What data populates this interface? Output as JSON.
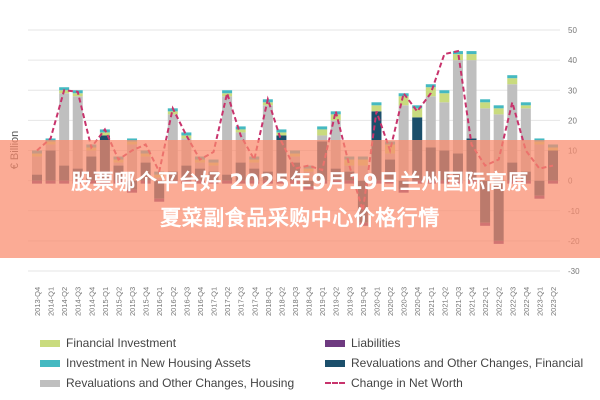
{
  "chart_data": {
    "type": "bar",
    "stacked": true,
    "ylabel": "€ Billion",
    "ylim": [
      -30,
      50
    ],
    "yticks": [
      50,
      40,
      30,
      20,
      10,
      0,
      -10,
      -20,
      -30
    ],
    "grid": true,
    "y_axis_side": "right",
    "legend_position": "bottom",
    "categories": [
      "2013-Q4",
      "2014-Q1",
      "2014-Q2",
      "2014-Q3",
      "2014-Q4",
      "2015-Q1",
      "2015-Q2",
      "2015-Q3",
      "2015-Q4",
      "2016-Q1",
      "2016-Q2",
      "2016-Q3",
      "2016-Q4",
      "2017-Q1",
      "2017-Q2",
      "2017-Q3",
      "2017-Q4",
      "2018-Q1",
      "2018-Q2",
      "2018-Q3",
      "2018-Q4",
      "2019-Q1",
      "2019-Q2",
      "2019-Q3",
      "2019-Q4",
      "2020-Q1",
      "2020-Q2",
      "2020-Q3",
      "2020-Q4",
      "2021-Q1",
      "2021-Q2",
      "2021-Q3",
      "2021-Q4",
      "2022-Q1",
      "2022-Q2",
      "2022-Q3",
      "2022-Q4",
      "2023-Q1",
      "2023-Q2"
    ],
    "series": [
      {
        "name": "Financial Investment",
        "kind": "bar",
        "color": "#c9db7e",
        "values": [
          1,
          1,
          1,
          1,
          1,
          1,
          1,
          1,
          1,
          1,
          1,
          1,
          1,
          1,
          1,
          1,
          1,
          1,
          1,
          1,
          1,
          2,
          2,
          2,
          2,
          2,
          3,
          3,
          3,
          3,
          3,
          2,
          2,
          2,
          2,
          2,
          1,
          1,
          1
        ]
      },
      {
        "name": "Liabilities",
        "kind": "bar",
        "color": "#6e3a80",
        "values": [
          -1,
          -1,
          -1,
          -1,
          -1,
          -1,
          -1,
          -1,
          -1,
          -1,
          -1,
          -1,
          -1,
          -1,
          -1,
          -1,
          -1,
          -1,
          -1,
          -1,
          -1,
          -1,
          -1,
          -1,
          -1,
          -1,
          -1,
          -1,
          -1,
          -1,
          -1,
          -1,
          -1,
          -1,
          -1,
          -1,
          -1,
          -1,
          -1
        ]
      },
      {
        "name": "Investment in New Housing Assets",
        "kind": "bar",
        "color": "#45b9c1",
        "values": [
          1,
          1,
          1,
          1,
          1,
          1,
          1,
          1,
          1,
          1,
          1,
          1,
          1,
          1,
          1,
          1,
          1,
          1,
          1,
          1,
          1,
          1,
          1,
          1,
          1,
          1,
          1,
          1,
          1,
          1,
          1,
          1,
          1,
          1,
          1,
          1,
          1,
          1,
          1
        ]
      },
      {
        "name": "Revaluations and Other Changes, Financial",
        "kind": "bar",
        "color": "#1b4f6b",
        "values": [
          2,
          10,
          5,
          4,
          8,
          15,
          5,
          -3,
          6,
          -6,
          3,
          5,
          4,
          3,
          2,
          6,
          4,
          3,
          15,
          6,
          -2,
          13,
          4,
          3,
          -14,
          23,
          7,
          -3,
          21,
          11,
          10,
          9,
          14,
          -14,
          -20,
          6,
          3,
          -5,
          10
        ]
      },
      {
        "name": "Revaluations and Other Changes, Housing",
        "kind": "bar",
        "color": "#bfbfbf",
        "values": [
          6,
          2,
          24,
          24,
          2,
          0,
          1,
          12,
          2,
          1,
          19,
          9,
          2,
          2,
          26,
          10,
          2,
          22,
          0,
          2,
          3,
          2,
          16,
          2,
          5,
          0,
          2,
          25,
          0,
          17,
          16,
          31,
          26,
          24,
          22,
          26,
          21,
          12,
          0
        ]
      },
      {
        "name": "Change in Net Worth",
        "kind": "line",
        "color": "#c8336c",
        "values": [
          10,
          14,
          30,
          29.5,
          11,
          17,
          7,
          10,
          12,
          3,
          24,
          15,
          7,
          9.5,
          29,
          15,
          7,
          27,
          13,
          4,
          5,
          3.5,
          23,
          5,
          -10,
          23,
          10,
          29,
          23,
          29,
          42,
          43,
          12,
          5,
          7,
          26,
          10,
          4,
          5
        ]
      }
    ]
  },
  "overlay": {
    "line1": "股票哪个平台好 2025年9月19日兰州国际高原",
    "line2": "夏菜副食品采购中心价格行情"
  }
}
